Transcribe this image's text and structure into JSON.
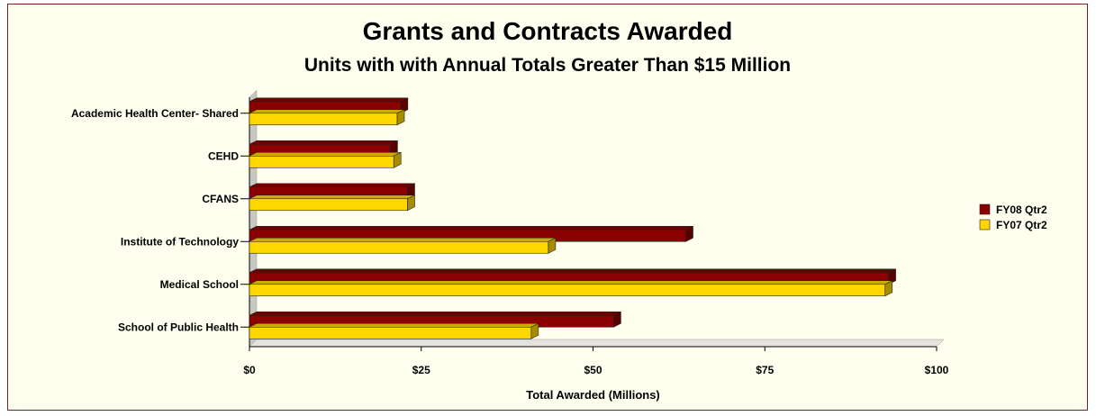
{
  "chart_data": {
    "type": "bar",
    "orientation": "horizontal",
    "title": "Grants and Contracts Awarded",
    "subtitle": "Units with with Annual Totals Greater Than $15 Million",
    "xlabel": "Total Awarded (Millions)",
    "ylabel": "",
    "categories": [
      "Academic Health Center- Shared",
      "CEHD",
      "CFANS",
      "Institute of Technology",
      "Medical School",
      "School of Public Health"
    ],
    "series": [
      {
        "name": "FY08 Qtr2",
        "color": "#8b0000",
        "values": [
          22,
          20.5,
          23,
          63.5,
          93,
          53
        ]
      },
      {
        "name": "FY07 Qtr2",
        "color": "#ffd700",
        "values": [
          21.5,
          21,
          23,
          43.5,
          92.5,
          41
        ]
      }
    ],
    "xlim": [
      0,
      100
    ],
    "xticks": [
      0,
      25,
      50,
      75,
      100
    ],
    "xtick_labels": [
      "$0",
      "$25",
      "$50",
      "$75",
      "$100"
    ],
    "legend_position": "right",
    "grid": false
  }
}
